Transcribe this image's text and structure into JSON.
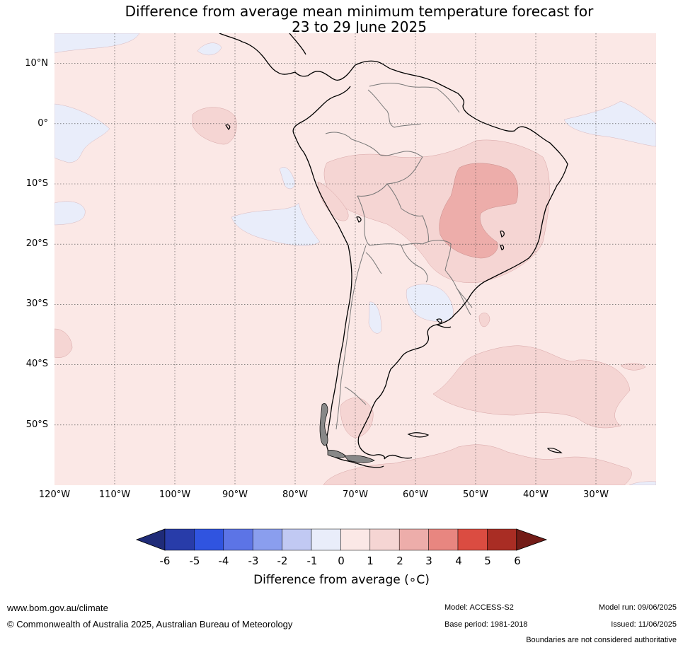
{
  "title": {
    "line1": "Difference from average mean minimum temperature forecast for",
    "line2": "23 to 29 June 2025"
  },
  "map": {
    "lat_labels": [
      "10°N",
      "0°",
      "10°S",
      "20°S",
      "30°S",
      "40°S",
      "50°S"
    ],
    "lon_labels": [
      "120°W",
      "110°W",
      "100°W",
      "90°W",
      "80°W",
      "70°W",
      "60°W",
      "50°W",
      "40°W",
      "30°W"
    ],
    "lat_values": [
      10,
      0,
      -10,
      -20,
      -30,
      -40,
      -50
    ],
    "lon_values": [
      -120,
      -110,
      -100,
      -90,
      -80,
      -70,
      -60,
      -50,
      -40,
      -30
    ],
    "lon_range": [
      -120,
      -20
    ],
    "lat_range": [
      -60,
      15
    ],
    "background_category": "0 to 1",
    "anomaly_regions": [
      {
        "name": "central-brazil",
        "category": "2 to 3",
        "color": "#edadaa"
      },
      {
        "name": "brazil-bolivia",
        "category": "1 to 2",
        "color": "#f5d5d3"
      },
      {
        "name": "south-atlantic",
        "category": "1 to 2",
        "color": "#f5d5d3"
      },
      {
        "name": "southern-ocean",
        "category": "1 to 2",
        "color": "#f5d5d3"
      },
      {
        "name": "patagonia",
        "category": "1 to 2",
        "color": "#f5d5d3"
      },
      {
        "name": "galapagos-area",
        "category": "1 to 2",
        "color": "#f5d5d3"
      },
      {
        "name": "east-pacific",
        "category": "1 to 2",
        "color": "#f5d5d3"
      },
      {
        "name": "equatorial-pacific",
        "category": "-1 to 0",
        "color": "#e9edfa"
      },
      {
        "name": "tropical-pacific",
        "category": "-1 to 0",
        "color": "#e9edfa"
      },
      {
        "name": "uruguay-argentina",
        "category": "-1 to 0",
        "color": "#e9edfa"
      },
      {
        "name": "equatorial-atlantic",
        "category": "-1 to 0",
        "color": "#e9edfa"
      }
    ]
  },
  "colorbar": {
    "ticks": [
      "-6",
      "-5",
      "-4",
      "-3",
      "-2",
      "-1",
      "0",
      "1",
      "2",
      "3",
      "4",
      "5",
      "6"
    ],
    "colors": [
      "#283ca9",
      "#3054e0",
      "#5c74e6",
      "#8a9eee",
      "#c1c9f3",
      "#e9edfa",
      "#fbe8e6",
      "#f5d5d3",
      "#edadaa",
      "#e88680",
      "#db4c41",
      "#a92d24"
    ],
    "low_extend_color": "#1f2b78",
    "high_extend_color": "#731c17",
    "label": "Difference from average (∘C)"
  },
  "footer": {
    "url": "www.bom.gov.au/climate",
    "copyright": "© Commonwealth of Australia 2025, Australian Bureau of Meteorology",
    "model": "Model: ACCESS-S2",
    "base_period": "Base period: 1981-2018",
    "model_run": "Model run: 09/06/2025",
    "issued": "Issued: 11/06/2025",
    "disclaimer": "Boundaries are not considered authoritative"
  }
}
